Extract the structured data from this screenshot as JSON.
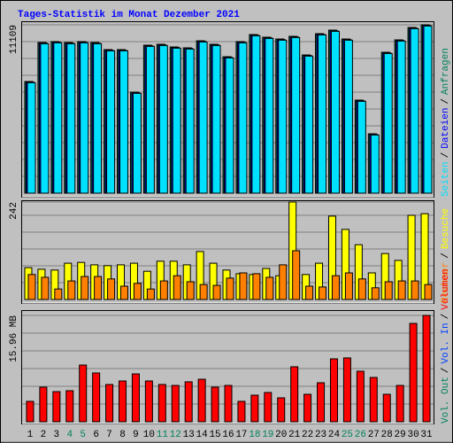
{
  "title": "Tages-Statistik im Monat Dezember 2021",
  "legend_separator": "/",
  "chart_data": [
    {
      "type": "bar",
      "ylim": [
        0,
        11109
      ],
      "yticks": [
        11109
      ],
      "grid": true,
      "series": [
        {
          "name": "Anfragen",
          "color": "#00805c",
          "values": [
            7367,
            9940,
            10000,
            9940,
            10000,
            9940,
            9472,
            9472,
            6665,
            9764,
            9823,
            9647,
            9589,
            10056,
            9823,
            9004,
            10000,
            10466,
            10290,
            10173,
            10349,
            9121,
            10524,
            10758,
            10173,
            6139,
            3917,
            9296,
            10115,
            10933,
            11109
          ]
        },
        {
          "name": "Dateien",
          "color": "#0000ff",
          "values": [
            7327,
            9900,
            9960,
            9900,
            9960,
            9900,
            9432,
            9432,
            6625,
            9724,
            9783,
            9607,
            9549,
            10016,
            9783,
            8964,
            9960,
            10426,
            10250,
            10133,
            10309,
            9081,
            10484,
            10718,
            10133,
            6099,
            3877,
            9256,
            10075,
            10893,
            11069
          ]
        },
        {
          "name": "Seiten",
          "color": "#00e0ff",
          "values": [
            7287,
            9860,
            9920,
            9860,
            9920,
            9860,
            9392,
            9392,
            6585,
            9684,
            9743,
            9567,
            9509,
            9976,
            9743,
            8924,
            9920,
            10386,
            10210,
            10093,
            10269,
            9041,
            10444,
            10678,
            10093,
            6059,
            3837,
            9216,
            10035,
            10853,
            11029
          ]
        }
      ]
    },
    {
      "type": "bar",
      "ylim": [
        0,
        242
      ],
      "yticks": [
        242
      ],
      "grid": true,
      "series": [
        {
          "name": "Besuche",
          "color": "#ffff00",
          "values": [
            79,
            75,
            73,
            90,
            92,
            86,
            84,
            86,
            90,
            70,
            95,
            95,
            86,
            119,
            90,
            73,
            64,
            62,
            77,
            59,
            242,
            62,
            90,
            207,
            174,
            136,
            66,
            114,
            97,
            209,
            213
          ]
        },
        {
          "name": "Rechner",
          "color": "#ff8000",
          "values": [
            62,
            55,
            26,
            46,
            57,
            57,
            51,
            33,
            40,
            26,
            46,
            59,
            44,
            37,
            35,
            53,
            66,
            64,
            55,
            86,
            121,
            33,
            31,
            59,
            66,
            51,
            29,
            44,
            46,
            46,
            37
          ]
        }
      ]
    },
    {
      "type": "bar",
      "ylim": [
        0,
        15.96
      ],
      "yticks": [
        {
          "value": 15.96,
          "label": "15.96 MB"
        }
      ],
      "grid": true,
      "categories": [
        "1",
        "2",
        "3",
        "4",
        "5",
        "6",
        "7",
        "8",
        "9",
        "10",
        "11",
        "12",
        "13",
        "14",
        "15",
        "16",
        "17",
        "18",
        "19",
        "20",
        "21",
        "22",
        "23",
        "24",
        "25",
        "26",
        "27",
        "28",
        "29",
        "30",
        "31"
      ],
      "category_colors": [
        "#000000",
        "#000000",
        "#000000",
        "#00805c",
        "#00805c",
        "#000000",
        "#000000",
        "#000000",
        "#000000",
        "#000000",
        "#00805c",
        "#00805c",
        "#000000",
        "#000000",
        "#000000",
        "#000000",
        "#000000",
        "#00805c",
        "#00805c",
        "#000000",
        "#000000",
        "#000000",
        "#000000",
        "#000000",
        "#00805c",
        "#00805c",
        "#000000",
        "#000000",
        "#000000",
        "#000000",
        "#000000"
      ],
      "series": [
        {
          "name": "Volumen",
          "color": "#ff0000",
          "values": [
            3.06,
            5.19,
            4.52,
            4.66,
            8.51,
            7.32,
            5.59,
            6.12,
            7.18,
            6.12,
            5.59,
            5.45,
            5.99,
            6.38,
            5.19,
            5.45,
            3.06,
            3.99,
            4.39,
            3.59,
            8.25,
            4.12,
            5.85,
            9.44,
            9.58,
            7.58,
            6.65,
            4.12,
            5.45,
            14.76,
            15.96
          ]
        },
        {
          "name": "Vol. In",
          "color": "#0040ff",
          "values": [
            null,
            null,
            null,
            null,
            null,
            null,
            null,
            null,
            null,
            null,
            null,
            null,
            null,
            null,
            null,
            null,
            null,
            null,
            null,
            null,
            null,
            null,
            null,
            null,
            null,
            null,
            null,
            null,
            null,
            null,
            null
          ]
        },
        {
          "name": "Vol. Out",
          "color": "#00805c",
          "values": [
            null,
            null,
            null,
            null,
            null,
            null,
            null,
            null,
            null,
            null,
            null,
            null,
            null,
            null,
            null,
            null,
            null,
            null,
            null,
            null,
            null,
            null,
            null,
            null,
            null,
            null,
            null,
            null,
            null,
            null,
            null
          ]
        }
      ]
    }
  ]
}
